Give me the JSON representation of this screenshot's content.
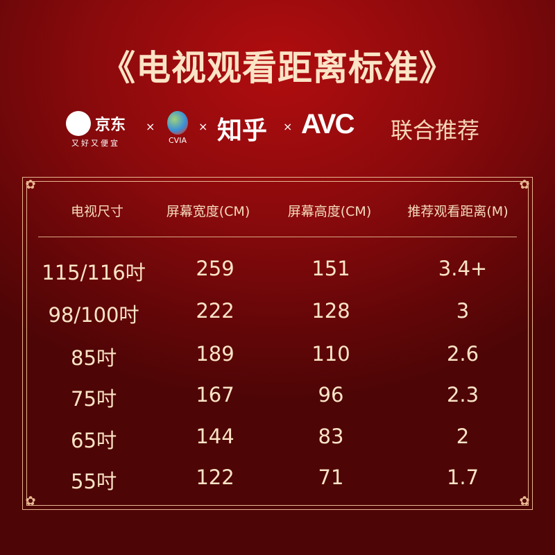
{
  "title": "《电视观看距离标准》",
  "partners": {
    "jd_name": "京东",
    "jd_slogan": "又好又便宜",
    "times": "×",
    "cvia": "CVIA",
    "zhihu": "知乎",
    "avc": "AVC",
    "joint": "联合推荐"
  },
  "table": {
    "headers": [
      "电视尺寸",
      "屏幕宽度(CM)",
      "屏幕高度(CM)",
      "推荐观看距离(M)"
    ],
    "rows": [
      [
        "115/116吋",
        "259",
        "151",
        "3.4+"
      ],
      [
        "98/100吋",
        "222",
        "128",
        "3"
      ],
      [
        "85吋",
        "189",
        "110",
        "2.6"
      ],
      [
        "75吋",
        "167",
        "96",
        "2.3"
      ],
      [
        "65吋",
        "144",
        "83",
        "2"
      ],
      [
        "55吋",
        "122",
        "71",
        "1.7"
      ]
    ]
  }
}
